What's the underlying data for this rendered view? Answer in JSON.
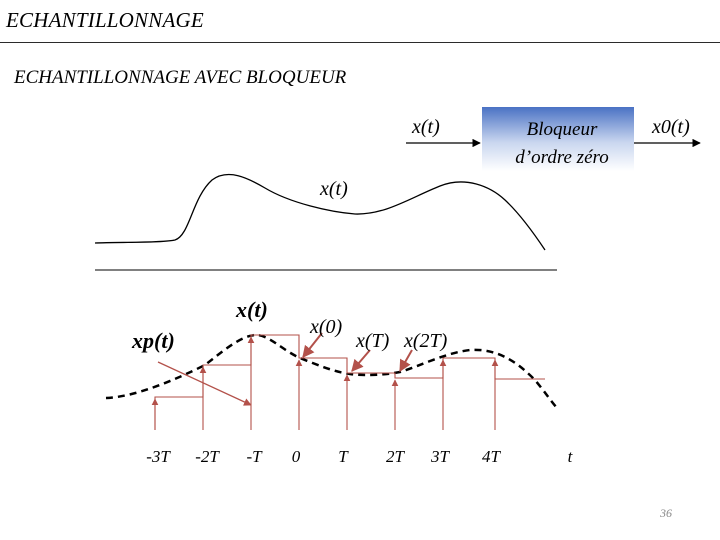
{
  "header": {
    "title": "ECHANTILLONNAGE"
  },
  "subtitle": "ECHANTILLONNAGE AVEC BLOQUEUR",
  "block": {
    "line1": "Bloqueur",
    "line2": "d’ordre zéro",
    "input_label": "x(t)",
    "output_label": "x0(t)"
  },
  "top_curve_label": "x(t)",
  "bottom_plot": {
    "signal_label": "x(t)",
    "xp_label": "xp(t)",
    "sample_labels": [
      "x(0)",
      "x(T)",
      "x(2T)"
    ],
    "tick_labels": [
      "-3T",
      "-2T",
      "-T",
      "0",
      "T",
      "2T",
      "3T",
      "4T",
      "t"
    ]
  },
  "page_number": "36",
  "colors": {
    "block_fill": "#4a72c4",
    "sample_color": "#b3514a"
  }
}
